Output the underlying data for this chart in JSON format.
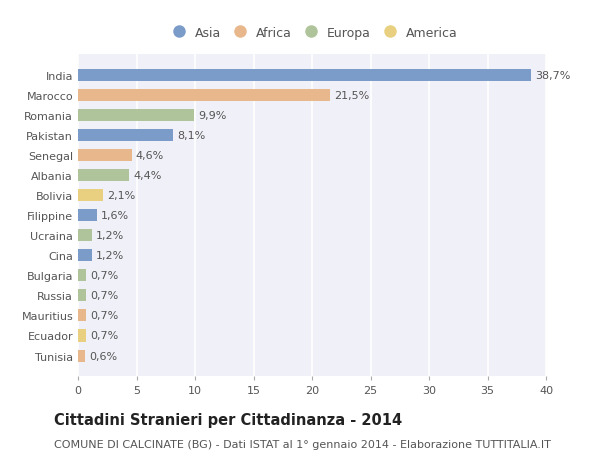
{
  "categories": [
    "India",
    "Marocco",
    "Romania",
    "Pakistan",
    "Senegal",
    "Albania",
    "Bolivia",
    "Filippine",
    "Ucraina",
    "Cina",
    "Bulgaria",
    "Russia",
    "Mauritius",
    "Ecuador",
    "Tunisia"
  ],
  "values": [
    38.7,
    21.5,
    9.9,
    8.1,
    4.6,
    4.4,
    2.1,
    1.6,
    1.2,
    1.2,
    0.7,
    0.7,
    0.7,
    0.7,
    0.6
  ],
  "labels": [
    "38,7%",
    "21,5%",
    "9,9%",
    "8,1%",
    "4,6%",
    "4,4%",
    "2,1%",
    "1,6%",
    "1,2%",
    "1,2%",
    "0,7%",
    "0,7%",
    "0,7%",
    "0,7%",
    "0,6%"
  ],
  "continents": [
    "Asia",
    "Africa",
    "Europa",
    "Asia",
    "Africa",
    "Europa",
    "America",
    "Asia",
    "Europa",
    "Asia",
    "Europa",
    "Europa",
    "Africa",
    "America",
    "Africa"
  ],
  "continent_colors": {
    "Asia": "#7b9cc8",
    "Africa": "#e8b88c",
    "Europa": "#afc49a",
    "America": "#e8d080"
  },
  "legend_order": [
    "Asia",
    "Africa",
    "Europa",
    "America"
  ],
  "xlim": [
    0,
    40
  ],
  "xticks": [
    0,
    5,
    10,
    15,
    20,
    25,
    30,
    35,
    40
  ],
  "title": "Cittadini Stranieri per Cittadinanza - 2014",
  "subtitle": "COMUNE DI CALCINATE (BG) - Dati ISTAT al 1° gennaio 2014 - Elaborazione TUTTITALIA.IT",
  "bg_color": "#ffffff",
  "plot_bg_color": "#f0f0f8",
  "bar_height": 0.6,
  "title_fontsize": 10.5,
  "subtitle_fontsize": 8,
  "label_fontsize": 8,
  "tick_fontsize": 8,
  "legend_fontsize": 9
}
